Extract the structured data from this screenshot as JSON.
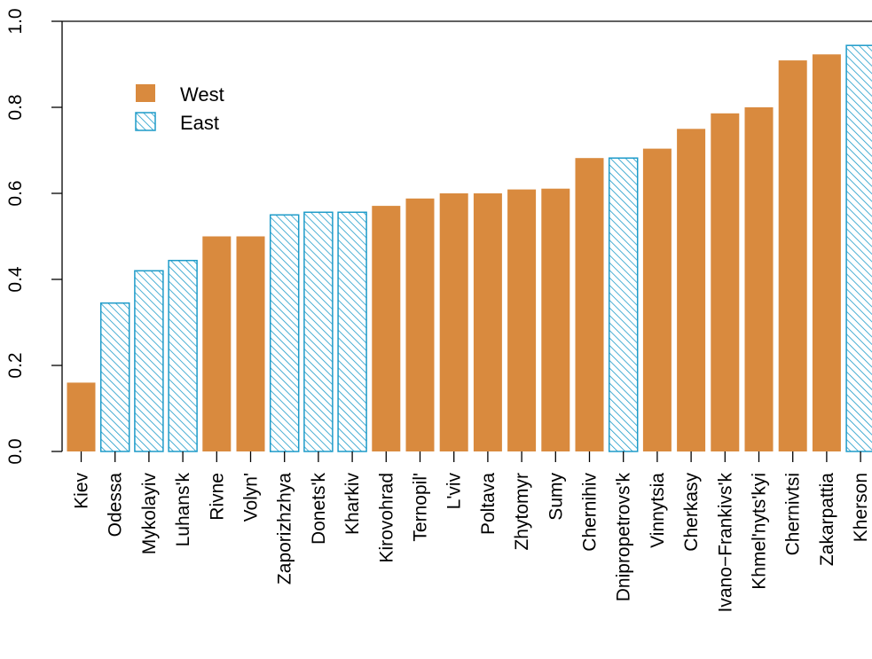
{
  "chart_data": {
    "type": "bar",
    "categories": [
      "Kiev",
      "Odessa",
      "Mykolayiv",
      "Luhans'k",
      "Rivne",
      "Volyn'",
      "Zaporizhzhya",
      "Donets'k",
      "Kharkiv",
      "Kirovohrad",
      "Ternopil'",
      "L'viv",
      "Poltava",
      "Zhytomyr",
      "Sumy",
      "Chernihiv",
      "Dnipropetrovs'k",
      "Vinnytsia",
      "Cherkasy",
      "Ivano−Frankivs'k",
      "Khmel'nyts'kyi",
      "Chernivtsi",
      "Zakarpattia",
      "Kherson"
    ],
    "values": [
      0.16,
      0.345,
      0.42,
      0.444,
      0.5,
      0.5,
      0.55,
      0.556,
      0.556,
      0.571,
      0.588,
      0.6,
      0.6,
      0.609,
      0.611,
      0.682,
      0.682,
      0.704,
      0.75,
      0.786,
      0.8,
      0.909,
      0.923,
      0.944
    ],
    "groups": [
      "West",
      "East",
      "East",
      "East",
      "West",
      "West",
      "East",
      "East",
      "East",
      "West",
      "West",
      "West",
      "West",
      "West",
      "West",
      "West",
      "East",
      "West",
      "West",
      "West",
      "West",
      "West",
      "West",
      "East"
    ],
    "series": [
      {
        "name": "West",
        "fill": "solid",
        "color": "#d98a3e"
      },
      {
        "name": "East",
        "fill": "hatched",
        "color": "#1e9bc9"
      }
    ],
    "yticks": [
      0.0,
      0.2,
      0.4,
      0.6,
      0.8,
      1.0
    ],
    "ytick_labels": [
      "0.0",
      "0.2",
      "0.4",
      "0.6",
      "0.8",
      "1.0"
    ],
    "ylim": [
      0,
      1.0
    ],
    "grid": false,
    "legend_position": "top-left",
    "title": "",
    "xlabel": "",
    "ylabel": ""
  }
}
